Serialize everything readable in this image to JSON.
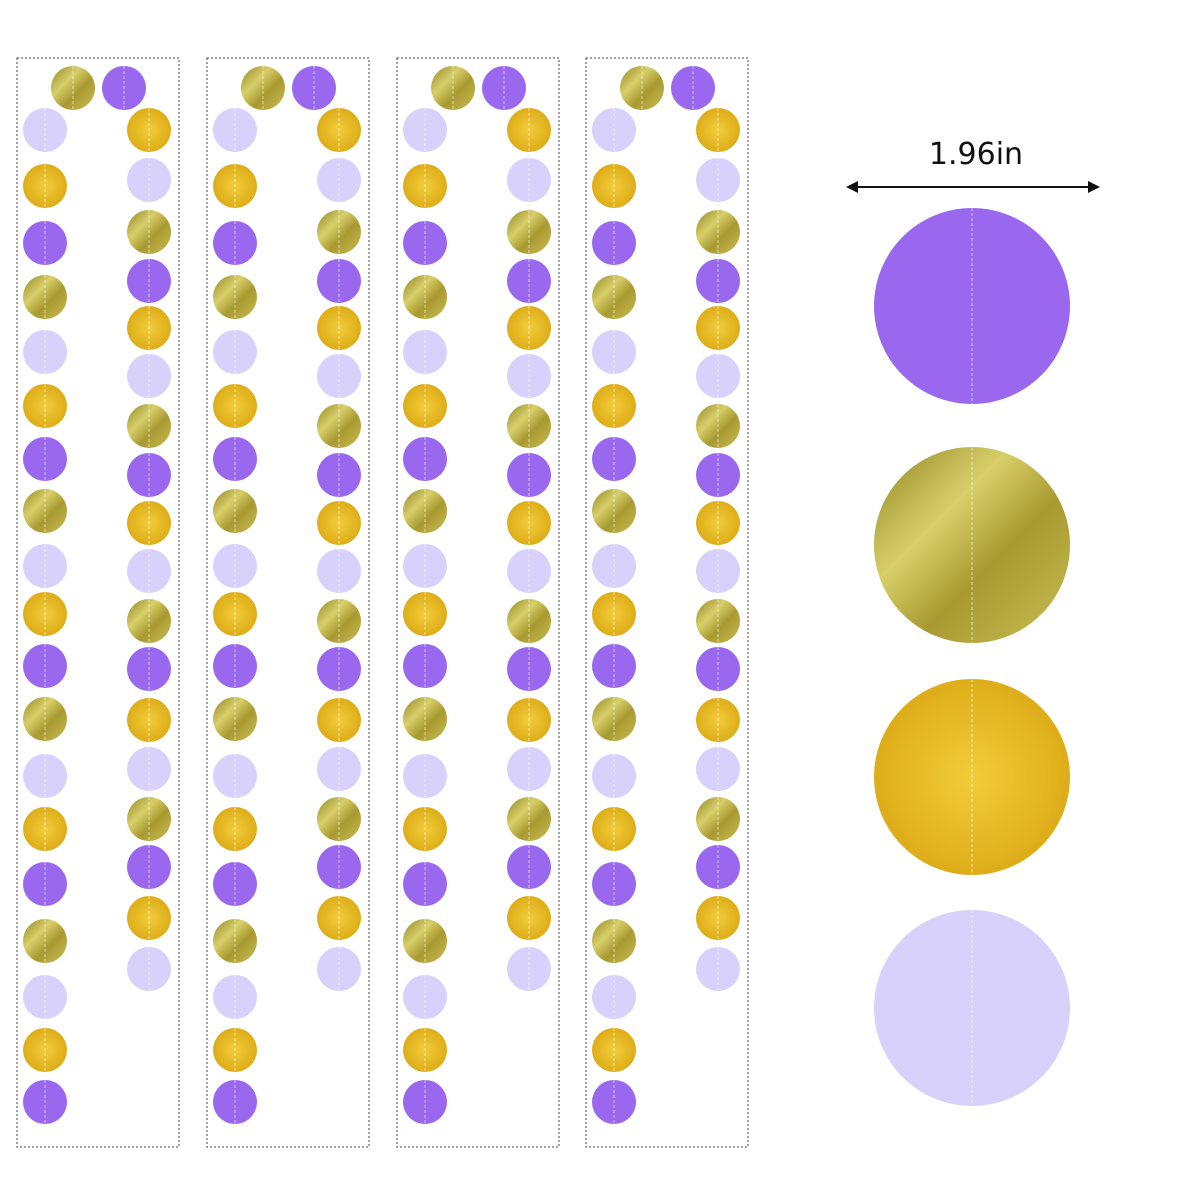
{
  "dimension_label": "1.96in"
}
